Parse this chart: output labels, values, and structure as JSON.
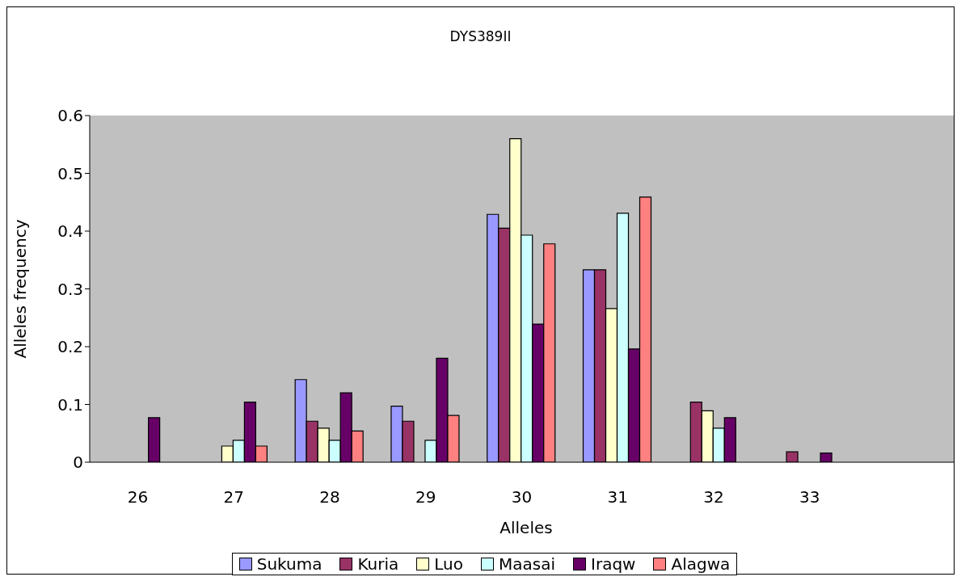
{
  "chart_data": {
    "type": "bar",
    "title": "DYS389II",
    "xlabel": "Alleles",
    "ylabel": "Alleles frequency",
    "categories": [
      "26",
      "27",
      "28",
      "29",
      "30",
      "31",
      "32",
      "33",
      null
    ],
    "series": [
      {
        "name": "Sukuma",
        "color": "#9999ff",
        "values": [
          0,
          0,
          0.143,
          0.097,
          0.429,
          0.333,
          0,
          0,
          null
        ]
      },
      {
        "name": "Kuria",
        "color": "#993366",
        "values": [
          0,
          0,
          0.071,
          0.071,
          0.405,
          0.333,
          0.104,
          0.018,
          null
        ]
      },
      {
        "name": "Luo",
        "color": "#ffffcc",
        "values": [
          0,
          0.028,
          0.059,
          0,
          0.56,
          0.266,
          0.089,
          0,
          null
        ]
      },
      {
        "name": "Maasai",
        "color": "#ccffff",
        "values": [
          0,
          0.038,
          0.038,
          0.038,
          0.393,
          0.431,
          0.059,
          0,
          null
        ]
      },
      {
        "name": "Iraqw",
        "color": "#660066",
        "values": [
          0.077,
          0.104,
          0.12,
          0.18,
          0.239,
          0.196,
          0.077,
          0.016,
          null
        ]
      },
      {
        "name": "Alagwa",
        "color": "#ff8080",
        "values": [
          0,
          0.028,
          0.054,
          0.081,
          0.378,
          0.459,
          0,
          0,
          null
        ]
      }
    ],
    "ylim": [
      0,
      0.6
    ],
    "yticks": [
      0,
      0.1,
      0.2,
      0.3,
      0.4,
      0.5,
      0.6
    ],
    "grid": false,
    "legend": "bottom"
  }
}
